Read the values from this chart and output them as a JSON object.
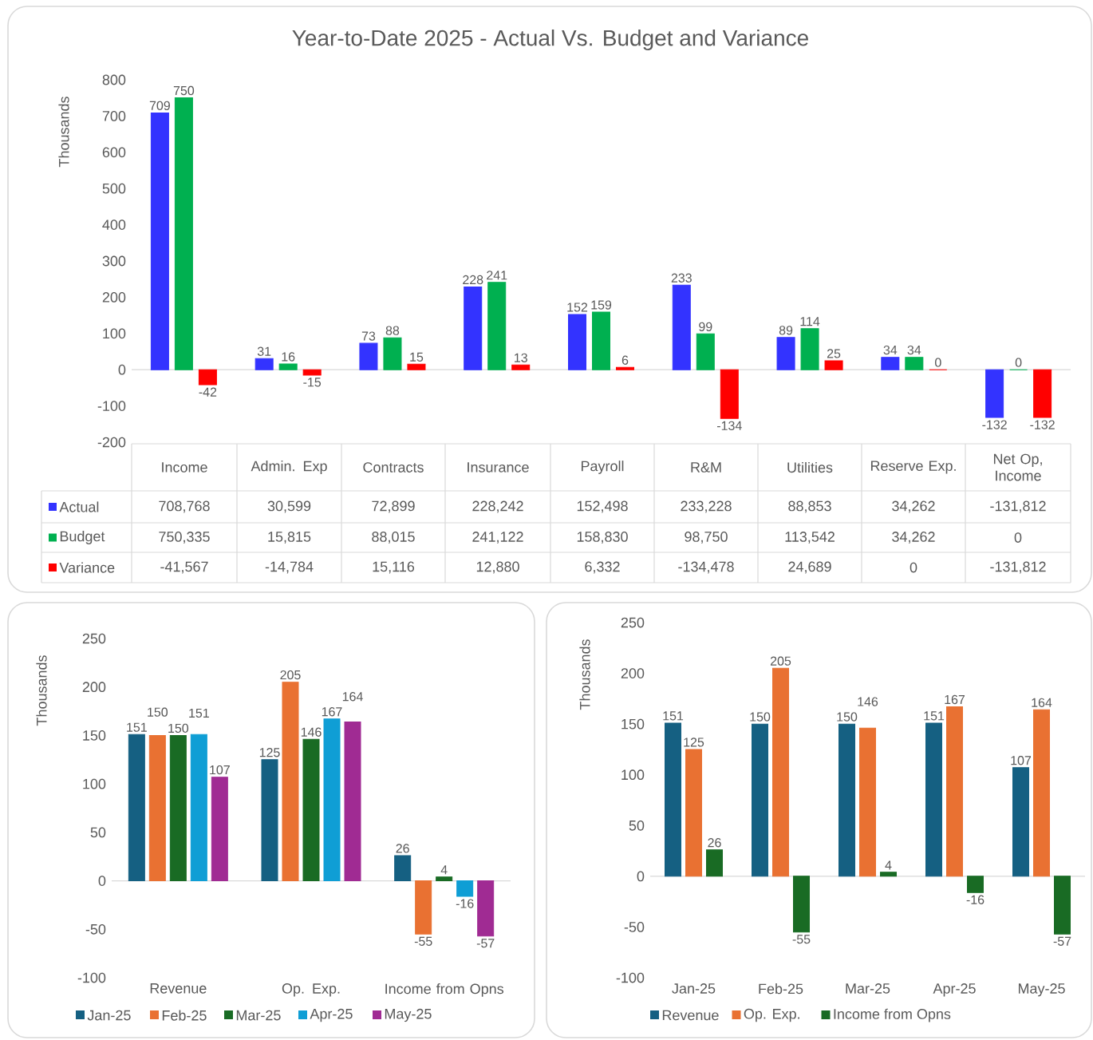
{
  "chart_data": [
    {
      "type": "bar",
      "title": "Year-to-Date 2025 - Actual Vs. Budget and Variance",
      "ylabel": "Thousands",
      "categories": [
        null,
        null,
        null,
        null,
        null,
        null,
        null,
        null,
        null
      ],
      "ylim": [
        -200,
        800
      ],
      "yticks": [
        -200,
        -100,
        0,
        100,
        200,
        300,
        400,
        500,
        600,
        700,
        800
      ],
      "series": [
        {
          "color": "#3333ff",
          "values": [
            708.768,
            30.599,
            72.899,
            228.242,
            152.498,
            233.228,
            88.853,
            34.262,
            -131.812
          ],
          "value_labels": [
            "709",
            "31",
            "73",
            "228",
            "152",
            "233",
            "89",
            "34",
            "-132"
          ]
        },
        {
          "color": "#00b050",
          "values": [
            750.335,
            15.815,
            88.015,
            241.122,
            158.83,
            98.75,
            113.542,
            34.262,
            0
          ],
          "value_labels": [
            "750",
            "16",
            "88",
            "241",
            "159",
            "99",
            "114",
            "34",
            "0"
          ]
        },
        {
          "color": "#ff0000",
          "values": [
            -41.567,
            -14.784,
            15.116,
            12.88,
            6.332,
            -134.478,
            24.689,
            0,
            -131.812
          ],
          "value_labels": [
            "-42",
            "-15",
            "15",
            "13",
            "6",
            "-134",
            "25",
            "0",
            "-132"
          ]
        }
      ]
    },
    {
      "type": "other",
      "categories": [
        "Income",
        "Admin. Exp",
        "Contracts",
        "Insurance",
        "Payroll",
        "R&M",
        "Utilities",
        "Reserve Exp.",
        "Net Op, Income"
      ],
      "series": [
        {
          "name": "Actual",
          "color": "#3333ff",
          "values": [
            708768,
            30599,
            72899,
            228242,
            152498,
            233228,
            88853,
            34262,
            -131812
          ],
          "value_labels": [
            "708,768",
            "30,599",
            "72,899",
            "228,242",
            "152,498",
            "233,228",
            "88,853",
            "34,262",
            "-131,812"
          ]
        },
        {
          "name": "Budget",
          "color": "#00b050",
          "values": [
            750335,
            15815,
            88015,
            241122,
            158830,
            98750,
            113542,
            34262,
            0
          ],
          "value_labels": [
            "750,335",
            "15,815",
            "88,015",
            "241,122",
            "158,830",
            "98,750",
            "113,542",
            "34,262",
            "0"
          ]
        },
        {
          "name": "Variance",
          "color": "#ff0000",
          "values": [
            -41567,
            -14784,
            15116,
            12880,
            6332,
            -134478,
            24689,
            0,
            -131812
          ],
          "value_labels": [
            "-41,567",
            "-14,784",
            "15,116",
            "12,880",
            "6,332",
            "-134,478",
            "24,689",
            "0",
            "-131,812"
          ]
        }
      ]
    },
    {
      "type": "bar",
      "ylabel": "Thousands",
      "categories": [
        "Revenue",
        "Op. Exp.",
        "Income from Opns"
      ],
      "ylim": [
        -100,
        250
      ],
      "yticks": [
        -100,
        -50,
        0,
        50,
        100,
        150,
        200,
        250
      ],
      "legend": "bottom",
      "data_labels": true,
      "series": [
        {
          "name": "Jan-25",
          "color": "#156082",
          "values": [
            151,
            125,
            26
          ]
        },
        {
          "name": "Feb-25",
          "color": "#e97132",
          "values": [
            150,
            205,
            -55
          ]
        },
        {
          "name": "Mar-25",
          "color": "#196b24",
          "values": [
            150,
            146,
            4
          ]
        },
        {
          "name": "Apr-25",
          "color": "#0f9ed5",
          "values": [
            151,
            167,
            -16
          ]
        },
        {
          "name": "May-25",
          "color": "#a02b93",
          "values": [
            107,
            164,
            -57
          ]
        }
      ]
    },
    {
      "type": "bar",
      "ylabel": "Thousands",
      "categories": [
        "Jan-25",
        "Feb-25",
        "Mar-25",
        "Apr-25",
        "May-25"
      ],
      "ylim": [
        -100,
        250
      ],
      "yticks": [
        -100,
        -50,
        0,
        50,
        100,
        150,
        200,
        250
      ],
      "legend": "bottom",
      "data_labels": true,
      "series": [
        {
          "name": "Revenue",
          "color": "#156082",
          "values": [
            151,
            150,
            150,
            151,
            107
          ]
        },
        {
          "name": "Op. Exp.",
          "color": "#e97132",
          "values": [
            125,
            205,
            146,
            167,
            164
          ]
        },
        {
          "name": "Income from Opns",
          "color": "#196b24",
          "values": [
            26,
            -55,
            4,
            -16,
            -57
          ]
        }
      ]
    }
  ]
}
